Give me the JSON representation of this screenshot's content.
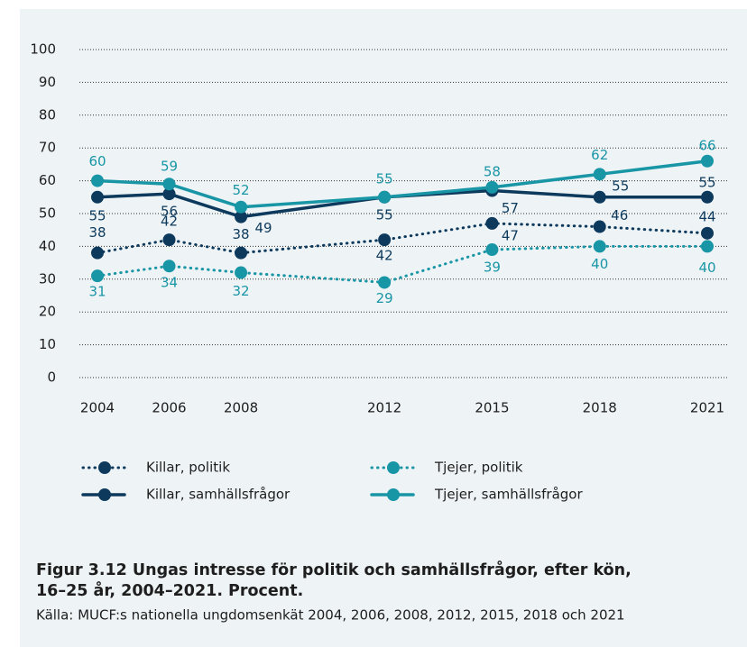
{
  "chart_data": {
    "type": "line",
    "title": "Figur 3.12 Ungas intresse för politik och samhällsfrågor, efter kön, 16–25 år, 2004–2021. Procent.",
    "source": "Källa: MUCF:s nationella ungdomsenkät 2004, 2006, 2008, 2012, 2015, 2018 och 2021",
    "x": [
      2004,
      2006,
      2008,
      2012,
      2015,
      2018,
      2021
    ],
    "xlim": [
      2004,
      2021
    ],
    "xticks": [
      2004,
      2006,
      2008,
      2012,
      2015,
      2018,
      2021
    ],
    "ylim": [
      0,
      100
    ],
    "yticks": [
      0,
      10,
      20,
      30,
      40,
      50,
      60,
      70,
      80,
      90,
      100
    ],
    "grid": true,
    "legend": "bottom",
    "series": [
      {
        "name": "Killar, politik",
        "color": "#0d3a5c",
        "style": "dotted",
        "values": [
          38,
          42,
          38,
          42,
          47,
          46,
          44
        ]
      },
      {
        "name": "Tjejer, politik",
        "color": "#1996a6",
        "style": "dotted",
        "values": [
          31,
          34,
          32,
          29,
          39,
          40,
          40
        ]
      },
      {
        "name": "Killar, samhällsfrågor",
        "color": "#0d3a5c",
        "style": "solid",
        "values": [
          55,
          56,
          49,
          55,
          57,
          55,
          55
        ]
      },
      {
        "name": "Tjejer, samhällsfrågor",
        "color": "#1996a6",
        "style": "solid",
        "values": [
          60,
          59,
          52,
          55,
          58,
          62,
          66
        ]
      }
    ]
  }
}
